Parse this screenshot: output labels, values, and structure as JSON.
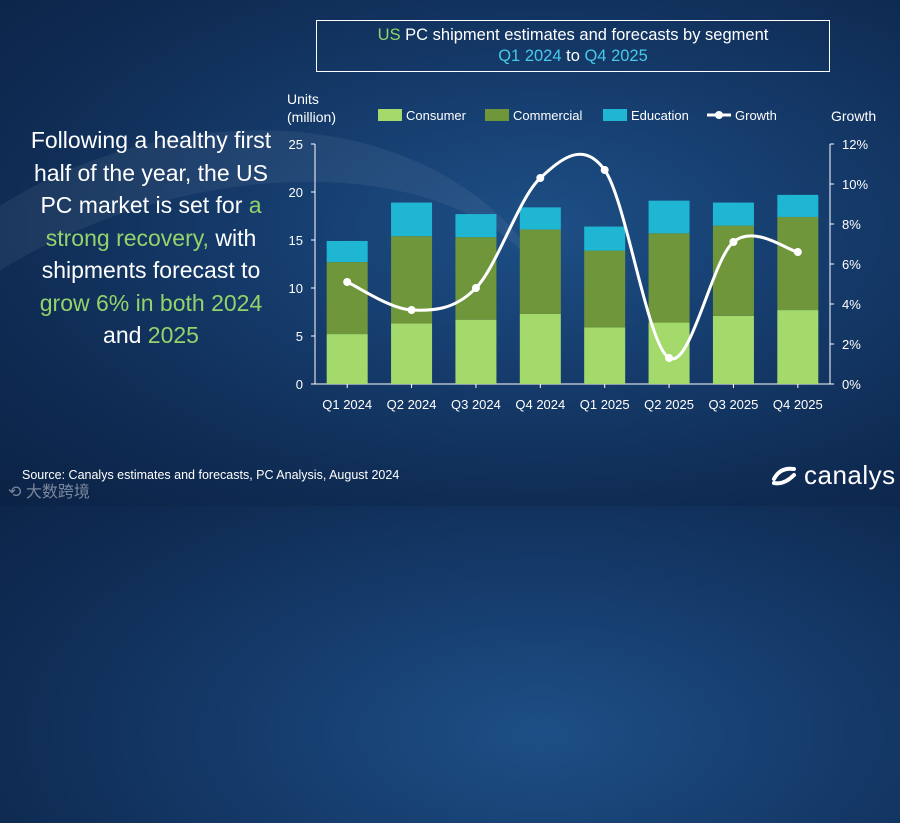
{
  "title_box": {
    "line1_pre": "US",
    "line1_post": " PC shipment estimates and forecasts by segment",
    "line2_a": "Q1 2024",
    "line2_mid": " to ",
    "line2_b": "Q4 2025"
  },
  "side_text": {
    "p1": "Following a healthy first half of the year, the US PC market is set for ",
    "hl1": "a strong recovery,",
    "p2": " with shipments forecast to ",
    "hl2": "grow 6% in both",
    "hl3": "2024",
    "p3": " and ",
    "hl4": "2025"
  },
  "source": "Source: Canalys estimates and forecasts, PC Analysis, August 2024",
  "logo": "canalys",
  "watermark": "大数跨境",
  "colors": {
    "consumer": "#a4d96c",
    "commercial": "#6f963a",
    "education": "#1fb6d4",
    "growth": "#ffffff"
  },
  "chart_data": {
    "type": "bar",
    "stacked": true,
    "categories": [
      "Q1 2024",
      "Q2 2024",
      "Q3 2024",
      "Q4 2024",
      "Q1 2025",
      "Q2 2025",
      "Q3 2025",
      "Q4 2025"
    ],
    "series": [
      {
        "name": "Consumer",
        "values": [
          5.2,
          6.3,
          6.7,
          7.3,
          5.9,
          6.4,
          7.1,
          7.7
        ]
      },
      {
        "name": "Commercial",
        "values": [
          7.5,
          9.1,
          8.6,
          8.8,
          8.0,
          9.3,
          9.4,
          9.7
        ]
      },
      {
        "name": "Education",
        "values": [
          2.2,
          3.5,
          2.4,
          2.3,
          2.5,
          3.4,
          2.4,
          2.3
        ]
      }
    ],
    "line_series": {
      "name": "Growth",
      "axis": "right",
      "values": [
        5.1,
        3.7,
        4.8,
        10.3,
        10.7,
        1.3,
        7.1,
        6.6
      ]
    },
    "ylabel_left": "Units (million)",
    "ylabel_left_line1": "Units",
    "ylabel_left_line2": "(million)",
    "ylabel_right": "Growth",
    "ylim_left": [
      0,
      25
    ],
    "yticks_left": [
      "0",
      "5",
      "10",
      "15",
      "20",
      "25"
    ],
    "ylim_right": [
      0,
      12
    ],
    "yticks_right": [
      "0%",
      "2%",
      "4%",
      "6%",
      "8%",
      "10%",
      "12%"
    ],
    "legend": [
      "Consumer",
      "Commercial",
      "Education",
      "Growth"
    ],
    "legend_position": "top"
  }
}
